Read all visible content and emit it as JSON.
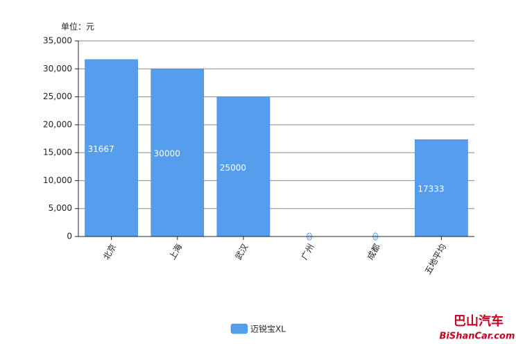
{
  "chart_data": {
    "type": "bar",
    "unit_label": "单位：元",
    "categories": [
      "北京",
      "上海",
      "武汉",
      "广州",
      "成都",
      "五地平均"
    ],
    "series": [
      {
        "name": "迈锐宝XL",
        "color": "#559ded",
        "values": [
          31667,
          30000,
          25000,
          0,
          0,
          17333
        ]
      }
    ],
    "ylim": [
      0,
      35000
    ],
    "yticks": [
      0,
      {
        "value": 5000,
        "label": "5,000"
      },
      {
        "value": 10000,
        "label": "10,000"
      },
      {
        "value": 15000,
        "label": "15,000"
      },
      {
        "value": 20000,
        "label": "20,000"
      },
      {
        "value": 25000,
        "label": "25,000"
      },
      {
        "value": 30000,
        "label": "30,000"
      },
      {
        "value": 35000,
        "label": "35,000"
      }
    ],
    "grid": true,
    "watermark": [
      "巴山汽车",
      "BiShanCar.com"
    ]
  }
}
